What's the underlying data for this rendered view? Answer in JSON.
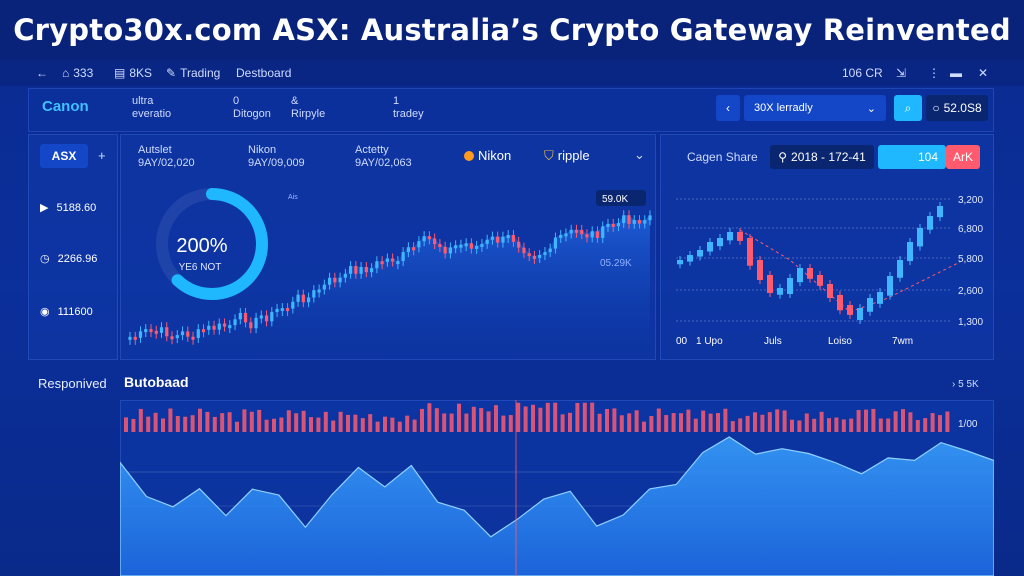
{
  "headline": "Crypto30x.com ASX: Australia’s Crypto Gateway Reinvented",
  "topbar": {
    "back_icon": "←",
    "item1": "333",
    "item2": "8KS",
    "item3": "Trading",
    "item4": "Destboard",
    "right_value": "106 CR",
    "menu_icon": "⋮"
  },
  "brand": "Canon",
  "header_info": {
    "a_line1": "ultra",
    "a_line2": "everatio",
    "b_line1": "0",
    "b_line2": "Ditogon",
    "c_line1": "&",
    "c_line2": "Rirpyle",
    "d_line1": "1",
    "d_line2": "tradey"
  },
  "period_select": "30X lerradly",
  "balance": "52.0S8",
  "ticker_tab": "ASX",
  "ticker_add": "+",
  "sidebar_stats": [
    "5188.60",
    "2266.96",
    "111600"
  ],
  "stat_cols": [
    {
      "title": "Autslet",
      "value": "9AY/02,020"
    },
    {
      "title": "Nikon",
      "value": "9AY/09,009"
    },
    {
      "title": "Actetty",
      "value": "9AY/02,063"
    }
  ],
  "coins": [
    "Nikon",
    "ripple"
  ],
  "gauge": {
    "value": "200%",
    "sub": "YE6 NOT",
    "fraction": 0.62
  },
  "main_chart": {
    "top_label": "Ais",
    "price_tag": "59.0K",
    "mid_tag": "05.29K"
  },
  "right_header": {
    "title": "Cagen Share",
    "date": "2018 - 172-41",
    "tag1": "104",
    "tag2": "ArK"
  },
  "right_chart": {
    "y_labels": [
      "3,200",
      "6,800",
      "5,800",
      "2,600",
      "1,300"
    ],
    "x_labels": [
      "00",
      "1 Upo",
      "Juls",
      "Loiso",
      "7wm"
    ]
  },
  "bottom": {
    "left_label": "Responived",
    "title": "Butobaad",
    "right_label": "5 5K",
    "bar_label": "1/00"
  },
  "colors": {
    "up": "#3fb6ff",
    "down": "#ff5a6e",
    "accent": "#1fb8ff",
    "bg": "#0b2f9b"
  }
}
